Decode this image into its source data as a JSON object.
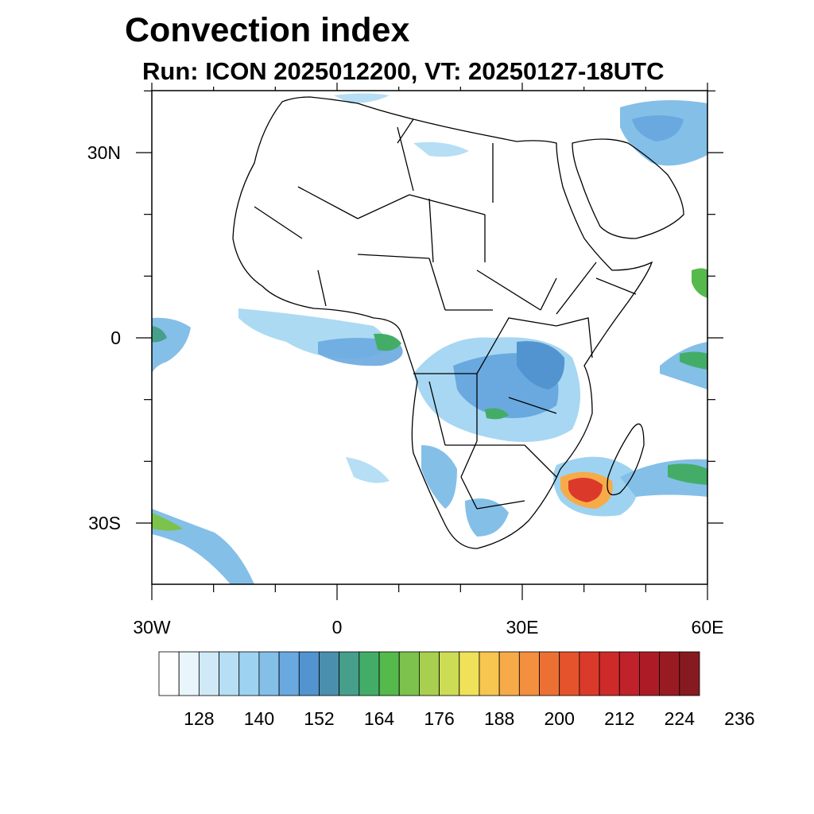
{
  "title": "Convection index",
  "subtitle": "Run: ICON 2025012200,  VT: 20250127-18UTC",
  "map": {
    "lat_labels": [
      "30N",
      "0",
      "30S"
    ],
    "lon_labels": [
      "30W",
      "0",
      "30E",
      "60E"
    ]
  },
  "colorbar": {
    "colors": [
      "#ffffff",
      "#e8f5fb",
      "#cfe9f7",
      "#b6def4",
      "#9dd3f1",
      "#84bfe8",
      "#6aa9df",
      "#5294cf",
      "#4a8fae",
      "#469f8a",
      "#43ad68",
      "#55b94c",
      "#7cc24c",
      "#a8cf4f",
      "#cddc55",
      "#efe15a",
      "#f6c650",
      "#f7ab48",
      "#f38f3e",
      "#ec7034",
      "#e4532c",
      "#db3a2a",
      "#cf2a2a",
      "#bf222a",
      "#ad1c26",
      "#9a1a22",
      "#861a20"
    ],
    "tick_labels": [
      "128",
      "140",
      "152",
      "164",
      "176",
      "188",
      "200",
      "212",
      "224",
      "236"
    ]
  }
}
